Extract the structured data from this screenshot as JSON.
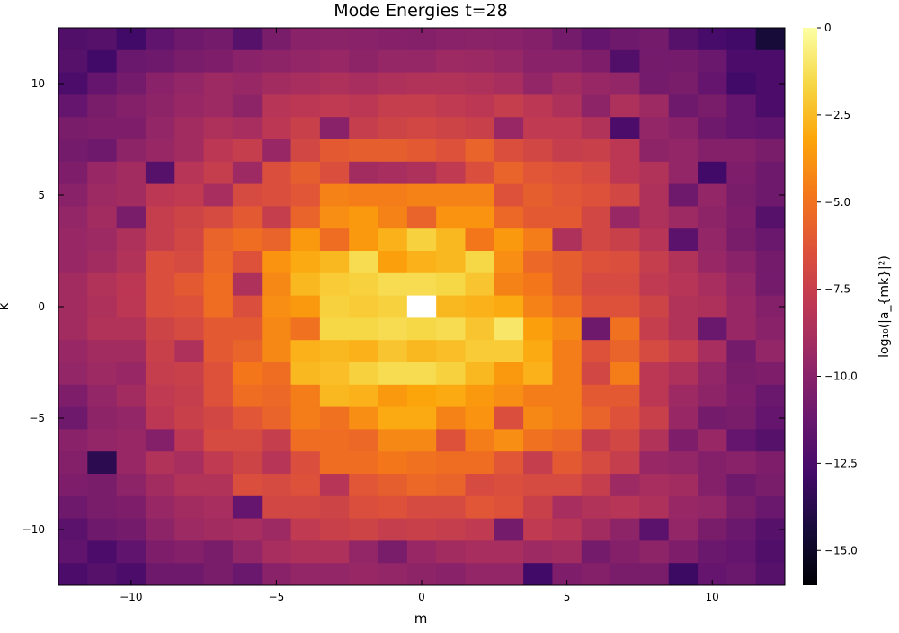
{
  "chart_data": {
    "type": "heatmap",
    "title": "Mode Energies t=28",
    "xlabel": "m",
    "ylabel": "k",
    "colorbar_label": "log₁₀(|a_{mk}|²)",
    "colormap": "inferno",
    "color_range": [
      -16,
      0
    ],
    "x_range": [
      -12.5,
      12.5
    ],
    "y_range": [
      -12.5,
      12.5
    ],
    "grid": false,
    "x_ticks": [
      {
        "value": -10,
        "label": "−10"
      },
      {
        "value": -5,
        "label": "−5"
      },
      {
        "value": 0,
        "label": "0"
      },
      {
        "value": 5,
        "label": "5"
      },
      {
        "value": 10,
        "label": "10"
      }
    ],
    "y_ticks": [
      {
        "value": -10,
        "label": "−10"
      },
      {
        "value": -5,
        "label": "−5"
      },
      {
        "value": 0,
        "label": "0"
      },
      {
        "value": 5,
        "label": "5"
      },
      {
        "value": 10,
        "label": "10"
      }
    ],
    "colorbar_ticks": [
      {
        "value": 0,
        "label": "0"
      },
      {
        "value": -2.5,
        "label": "−2.5"
      },
      {
        "value": -5,
        "label": "−5.0"
      },
      {
        "value": -7.5,
        "label": "−7.5"
      },
      {
        "value": -10,
        "label": "−10.0"
      },
      {
        "value": -12.5,
        "label": "−12.5"
      },
      {
        "value": -15,
        "label": "−15.0"
      }
    ],
    "m_values": [
      -12,
      -11,
      -10,
      -9,
      -8,
      -7,
      -6,
      -5,
      -4,
      -3,
      -2,
      -1,
      0,
      1,
      2,
      3,
      4,
      5,
      6,
      7,
      8,
      9,
      10,
      11,
      12
    ],
    "k_values": [
      12,
      11,
      10,
      9,
      8,
      7,
      6,
      5,
      4,
      3,
      2,
      1,
      0,
      -1,
      -2,
      -3,
      -4,
      -5,
      -6,
      -7,
      -8,
      -9,
      -10,
      -11,
      -12
    ],
    "energies": [
      [
        -12.2,
        -12.0,
        -12.8,
        -11.6,
        -11.0,
        -10.8,
        -12.0,
        -10.6,
        -10.0,
        -9.9,
        -10.0,
        -10.1,
        -10.2,
        -10.0,
        -9.9,
        -10.0,
        -10.2,
        -10.8,
        -11.4,
        -11.0,
        -10.8,
        -12.0,
        -12.6,
        -12.8,
        -14.4
      ],
      [
        -12.0,
        -12.8,
        -11.2,
        -11.0,
        -10.6,
        -10.4,
        -10.0,
        -9.8,
        -9.6,
        -9.4,
        -9.8,
        -9.5,
        -9.5,
        -9.2,
        -9.3,
        -9.5,
        -10.0,
        -10.0,
        -10.4,
        -12.2,
        -10.8,
        -10.8,
        -11.2,
        -12.4,
        -12.4
      ],
      [
        -12.4,
        -11.4,
        -10.8,
        -10.0,
        -9.6,
        -9.2,
        -9.4,
        -9.0,
        -8.8,
        -8.6,
        -8.8,
        -8.6,
        -8.4,
        -8.4,
        -8.6,
        -8.8,
        -9.6,
        -9.0,
        -9.4,
        -9.6,
        -10.8,
        -10.6,
        -11.4,
        -12.8,
        -12.4
      ],
      [
        -11.4,
        -10.6,
        -10.2,
        -9.8,
        -9.4,
        -9.2,
        -9.8,
        -8.2,
        -8.0,
        -7.8,
        -8.0,
        -7.6,
        -7.6,
        -7.8,
        -8.0,
        -7.6,
        -8.0,
        -8.6,
        -9.8,
        -8.6,
        -9.2,
        -11.0,
        -10.6,
        -11.4,
        -12.4
      ],
      [
        -10.6,
        -10.4,
        -10.4,
        -9.6,
        -9.0,
        -8.6,
        -8.8,
        -8.0,
        -7.4,
        -10.0,
        -7.6,
        -7.2,
        -7.0,
        -7.2,
        -7.4,
        -9.4,
        -7.8,
        -7.8,
        -8.4,
        -12.4,
        -9.6,
        -10.0,
        -11.0,
        -11.4,
        -11.6
      ],
      [
        -10.8,
        -11.0,
        -9.8,
        -9.4,
        -9.0,
        -8.0,
        -7.6,
        -9.4,
        -7.0,
        -6.0,
        -5.8,
        -5.8,
        -6.0,
        -6.4,
        -5.6,
        -6.6,
        -7.0,
        -7.6,
        -7.4,
        -8.0,
        -9.8,
        -9.6,
        -10.2,
        -10.2,
        -10.6
      ],
      [
        -10.4,
        -9.4,
        -9.0,
        -12.0,
        -8.2,
        -7.6,
        -9.2,
        -6.6,
        -5.8,
        -6.6,
        -9.0,
        -8.8,
        -8.6,
        -7.8,
        -6.6,
        -5.6,
        -6.2,
        -6.4,
        -6.8,
        -8.0,
        -8.4,
        -9.6,
        -12.8,
        -10.4,
        -11.0
      ],
      [
        -10.0,
        -9.2,
        -9.0,
        -8.0,
        -7.8,
        -8.8,
        -6.8,
        -6.6,
        -6.2,
        -4.4,
        -4.6,
        -4.6,
        -4.4,
        -4.4,
        -4.4,
        -6.4,
        -5.8,
        -6.2,
        -6.4,
        -7.0,
        -8.6,
        -11.0,
        -9.6,
        -10.6,
        -11.0
      ],
      [
        -9.6,
        -9.0,
        -10.6,
        -7.6,
        -7.2,
        -6.8,
        -6.0,
        -7.6,
        -5.6,
        -4.0,
        -3.6,
        -4.4,
        -5.6,
        -3.8,
        -3.8,
        -5.4,
        -6.0,
        -6.0,
        -7.0,
        -9.4,
        -8.6,
        -9.2,
        -9.8,
        -10.4,
        -12.0
      ],
      [
        -9.4,
        -9.2,
        -8.6,
        -7.6,
        -7.0,
        -5.6,
        -5.2,
        -5.6,
        -3.6,
        -5.2,
        -3.6,
        -2.8,
        -1.8,
        -2.6,
        -4.8,
        -3.6,
        -4.6,
        -8.6,
        -7.0,
        -7.4,
        -8.2,
        -11.8,
        -9.6,
        -10.6,
        -11.2
      ],
      [
        -9.4,
        -9.0,
        -8.4,
        -6.6,
        -6.8,
        -5.4,
        -6.4,
        -3.8,
        -3.0,
        -2.6,
        -1.4,
        -3.4,
        -2.8,
        -2.6,
        -1.6,
        -4.0,
        -5.4,
        -5.8,
        -6.4,
        -6.6,
        -7.6,
        -8.4,
        -9.4,
        -10.0,
        -10.8
      ],
      [
        -9.0,
        -8.4,
        -8.0,
        -6.6,
        -6.0,
        -5.2,
        -8.6,
        -4.2,
        -2.6,
        -2.0,
        -1.8,
        -1.4,
        -1.4,
        -1.6,
        -2.2,
        -4.4,
        -4.8,
        -5.8,
        -6.8,
        -6.8,
        -7.8,
        -8.2,
        -8.8,
        -9.6,
        -10.8
      ],
      [
        -9.0,
        -8.6,
        -8.0,
        -6.6,
        -6.4,
        -5.2,
        -6.6,
        -4.0,
        -3.6,
        -1.8,
        -2.0,
        -1.8,
        0.0,
        -2.6,
        -2.8,
        -3.0,
        -4.4,
        -5.2,
        -6.4,
        -6.4,
        -7.2,
        -8.4,
        -8.6,
        -9.4,
        -10.2
      ],
      [
        -9.0,
        -8.4,
        -8.4,
        -7.2,
        -6.8,
        -6.0,
        -6.0,
        -4.2,
        -5.0,
        -1.6,
        -1.6,
        -1.4,
        -1.6,
        -1.4,
        -2.2,
        -1.0,
        -3.4,
        -4.2,
        -11.0,
        -5.0,
        -7.6,
        -8.4,
        -11.2,
        -9.4,
        -10.0
      ],
      [
        -9.4,
        -9.0,
        -9.0,
        -7.4,
        -8.6,
        -6.0,
        -5.6,
        -4.2,
        -2.8,
        -2.6,
        -2.8,
        -2.2,
        -2.6,
        -2.4,
        -2.0,
        -2.0,
        -3.0,
        -4.6,
        -6.4,
        -5.6,
        -6.8,
        -7.6,
        -8.8,
        -10.8,
        -9.6
      ],
      [
        -9.6,
        -9.2,
        -9.4,
        -7.6,
        -7.4,
        -6.4,
        -4.8,
        -5.2,
        -2.6,
        -2.4,
        -1.8,
        -1.4,
        -1.4,
        -1.8,
        -2.6,
        -3.6,
        -2.8,
        -4.6,
        -7.0,
        -4.6,
        -8.0,
        -8.6,
        -9.6,
        -10.6,
        -10.4
      ],
      [
        -10.4,
        -9.6,
        -9.0,
        -7.8,
        -7.6,
        -6.4,
        -5.2,
        -5.4,
        -4.6,
        -2.6,
        -2.8,
        -3.6,
        -3.2,
        -3.0,
        -3.6,
        -4.0,
        -4.6,
        -4.6,
        -6.0,
        -6.0,
        -8.0,
        -9.2,
        -9.8,
        -10.4,
        -11.2
      ],
      [
        -11.0,
        -9.8,
        -9.6,
        -8.0,
        -7.4,
        -7.0,
        -6.2,
        -5.6,
        -4.6,
        -5.0,
        -4.0,
        -3.0,
        -3.0,
        -4.4,
        -3.8,
        -6.6,
        -4.2,
        -4.6,
        -5.6,
        -6.4,
        -7.4,
        -9.4,
        -10.8,
        -10.6,
        -11.4
      ],
      [
        -10.0,
        -9.6,
        -9.4,
        -10.2,
        -8.0,
        -6.8,
        -6.8,
        -7.6,
        -5.2,
        -5.2,
        -5.4,
        -4.2,
        -4.2,
        -6.4,
        -4.6,
        -4.0,
        -5.0,
        -5.4,
        -7.6,
        -7.0,
        -8.4,
        -10.4,
        -9.4,
        -11.4,
        -12.0
      ],
      [
        -10.2,
        -13.6,
        -9.4,
        -8.4,
        -8.8,
        -7.8,
        -7.2,
        -8.2,
        -6.6,
        -5.2,
        -5.2,
        -4.8,
        -5.0,
        -5.2,
        -5.2,
        -6.2,
        -7.6,
        -6.0,
        -6.8,
        -7.6,
        -9.4,
        -9.6,
        -10.2,
        -10.0,
        -10.4
      ],
      [
        -10.4,
        -10.6,
        -9.8,
        -9.0,
        -8.4,
        -8.4,
        -6.6,
        -6.8,
        -6.4,
        -8.2,
        -6.2,
        -5.8,
        -5.4,
        -5.6,
        -6.8,
        -6.6,
        -6.8,
        -6.8,
        -7.6,
        -9.2,
        -8.8,
        -9.0,
        -10.2,
        -11.0,
        -10.6
      ],
      [
        -11.0,
        -10.6,
        -10.4,
        -9.4,
        -9.0,
        -8.8,
        -11.4,
        -7.0,
        -7.0,
        -7.2,
        -6.6,
        -6.4,
        -6.8,
        -6.8,
        -6.2,
        -6.4,
        -7.4,
        -8.8,
        -8.4,
        -8.2,
        -8.6,
        -9.4,
        -9.6,
        -10.6,
        -11.2
      ],
      [
        -11.8,
        -11.0,
        -10.8,
        -9.8,
        -9.2,
        -9.0,
        -8.8,
        -9.2,
        -7.8,
        -7.4,
        -7.2,
        -7.6,
        -7.4,
        -7.6,
        -7.8,
        -10.8,
        -7.8,
        -8.2,
        -9.0,
        -9.8,
        -11.8,
        -9.6,
        -10.6,
        -11.2,
        -12.0
      ],
      [
        -11.6,
        -12.4,
        -11.6,
        -10.4,
        -10.2,
        -10.6,
        -9.6,
        -8.8,
        -8.6,
        -8.6,
        -9.6,
        -10.6,
        -9.4,
        -9.0,
        -8.8,
        -8.8,
        -9.2,
        -9.0,
        -10.8,
        -10.2,
        -9.8,
        -10.4,
        -11.2,
        -11.4,
        -12.2
      ],
      [
        -12.4,
        -12.0,
        -12.4,
        -11.0,
        -11.0,
        -10.6,
        -11.2,
        -10.0,
        -9.6,
        -9.6,
        -9.4,
        -9.6,
        -9.8,
        -10.0,
        -9.6,
        -9.6,
        -12.8,
        -10.4,
        -10.2,
        -10.6,
        -10.6,
        -13.0,
        -11.4,
        -11.2,
        -12.0
      ]
    ]
  }
}
